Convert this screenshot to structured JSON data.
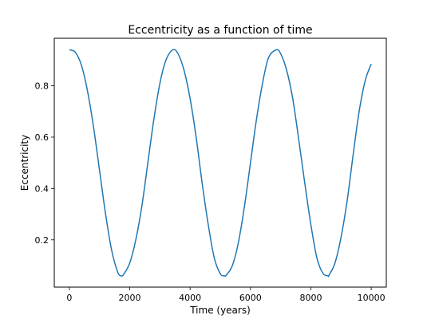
{
  "chart_data": {
    "type": "line",
    "title": "Eccentricity as a function of time",
    "xlabel": "Time (years)",
    "ylabel": "Eccentricity",
    "xlim": [
      -500,
      10500
    ],
    "ylim": [
      0.016,
      0.985
    ],
    "xticks": [
      0,
      2000,
      4000,
      6000,
      8000,
      10000
    ],
    "yticks": [
      0.2,
      0.4,
      0.6,
      0.8
    ],
    "xtick_labels": [
      "0",
      "2000",
      "4000",
      "6000",
      "8000",
      "10000"
    ],
    "ytick_labels": [
      "0.2",
      "0.4",
      "0.6",
      "0.8"
    ],
    "grid": false,
    "series": [
      {
        "color": "#1f77b4",
        "x": [
          0,
          200,
          400,
          600,
          800,
          1000,
          1200,
          1400,
          1600,
          1714,
          1800,
          2000,
          2200,
          2400,
          2600,
          2800,
          3000,
          3200,
          3428,
          3600,
          3800,
          4000,
          4200,
          4400,
          4600,
          4800,
          5000,
          5142,
          5200,
          5400,
          5600,
          5800,
          6000,
          6200,
          6400,
          6600,
          6856,
          7000,
          7200,
          7400,
          7600,
          7800,
          8000,
          8200,
          8400,
          8570,
          8600,
          8800,
          9000,
          9200,
          9400,
          9600,
          9800,
          10000
        ],
        "y": [
          0.94,
          0.93,
          0.88,
          0.78,
          0.64,
          0.47,
          0.3,
          0.16,
          0.075,
          0.06,
          0.066,
          0.11,
          0.2,
          0.33,
          0.5,
          0.67,
          0.81,
          0.9,
          0.94,
          0.925,
          0.86,
          0.75,
          0.6,
          0.42,
          0.26,
          0.13,
          0.068,
          0.06,
          0.063,
          0.1,
          0.19,
          0.33,
          0.5,
          0.67,
          0.81,
          0.91,
          0.94,
          0.925,
          0.86,
          0.75,
          0.59,
          0.42,
          0.26,
          0.13,
          0.07,
          0.06,
          0.062,
          0.11,
          0.21,
          0.35,
          0.53,
          0.7,
          0.82,
          0.885
        ]
      }
    ]
  }
}
